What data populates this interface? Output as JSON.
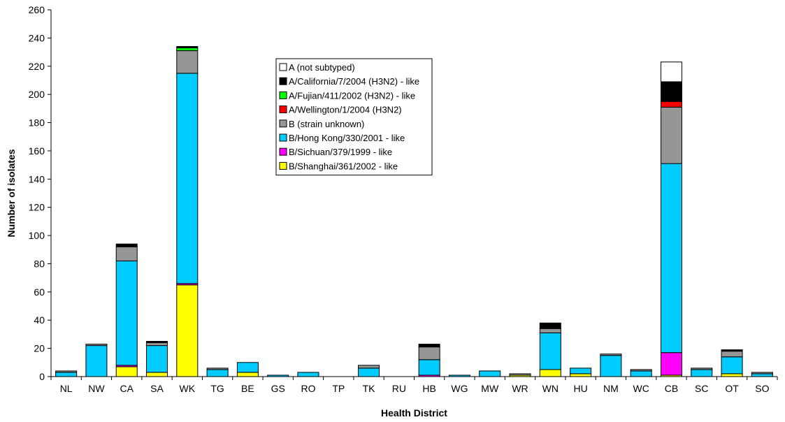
{
  "chart_data": {
    "type": "bar",
    "stacked": true,
    "title": "",
    "xlabel": "Health District",
    "ylabel": "Number of isolates",
    "ylim": [
      0,
      260
    ],
    "yticks": [
      0,
      20,
      40,
      60,
      80,
      100,
      120,
      140,
      160,
      180,
      200,
      220,
      240,
      260
    ],
    "grid": false,
    "legend_placement": "top-center",
    "categories": [
      "NL",
      "NW",
      "CA",
      "SA",
      "WK",
      "TG",
      "BE",
      "GS",
      "RO",
      "TP",
      "TK",
      "RU",
      "HB",
      "WG",
      "MW",
      "WR",
      "WN",
      "HU",
      "NM",
      "WC",
      "CB",
      "SC",
      "OT",
      "SO"
    ],
    "series": [
      {
        "name": "B/Shanghai/361/2002 - like",
        "color": "#ffff00",
        "values": [
          0,
          0,
          7,
          3,
          65,
          0,
          3,
          0,
          0,
          0,
          0,
          0,
          0,
          0,
          0,
          1,
          5,
          2,
          0,
          0,
          1,
          0,
          2,
          0
        ]
      },
      {
        "name": "B/Sichuan/379/1999 - like",
        "color": "#ff00ff",
        "values": [
          0,
          0,
          1,
          0,
          1,
          0,
          0,
          0,
          0,
          0,
          0,
          0,
          1,
          0,
          0,
          0,
          0,
          0,
          0,
          0,
          16,
          0,
          0,
          0
        ]
      },
      {
        "name": "B/Hong Kong/330/2001 - like",
        "color": "#00ccff",
        "values": [
          3,
          22,
          74,
          19,
          149,
          5,
          7,
          1,
          3,
          0,
          6,
          0,
          11,
          1,
          4,
          0,
          26,
          4,
          15,
          4,
          134,
          5,
          12,
          2
        ]
      },
      {
        "name": "B (strain unknown)",
        "color": "#969696",
        "values": [
          1,
          1,
          10,
          2,
          16,
          1,
          0,
          0,
          0,
          0,
          2,
          0,
          9,
          0,
          0,
          1,
          3,
          0,
          1,
          1,
          40,
          1,
          4,
          1
        ]
      },
      {
        "name": "A/Wellington/1/2004 (H3N2)",
        "color": "#ff0000",
        "values": [
          0,
          0,
          0,
          0,
          0,
          0,
          0,
          0,
          0,
          0,
          0,
          0,
          0,
          0,
          0,
          0,
          0,
          0,
          0,
          0,
          4,
          0,
          0,
          0
        ]
      },
      {
        "name": "A/Fujian/411/2002 (H3N2) - like",
        "color": "#00ff00",
        "values": [
          0,
          0,
          0,
          0,
          2,
          0,
          0,
          0,
          0,
          0,
          0,
          0,
          0,
          0,
          0,
          0,
          0,
          0,
          0,
          0,
          0,
          0,
          0,
          0
        ]
      },
      {
        "name": "A/California/7/2004 (H3N2) - like",
        "color": "#000000",
        "values": [
          0,
          0,
          2,
          1,
          1,
          0,
          0,
          0,
          0,
          0,
          0,
          0,
          2,
          0,
          0,
          0,
          4,
          0,
          0,
          0,
          14,
          0,
          1,
          0
        ]
      },
      {
        "name": "A (not subtyped)",
        "color": "#ffffff",
        "values": [
          0,
          0,
          0,
          0,
          0,
          0,
          0,
          0,
          0,
          0,
          0,
          0,
          0,
          0,
          0,
          0,
          0,
          0,
          0,
          0,
          14,
          0,
          0,
          0
        ]
      }
    ]
  }
}
